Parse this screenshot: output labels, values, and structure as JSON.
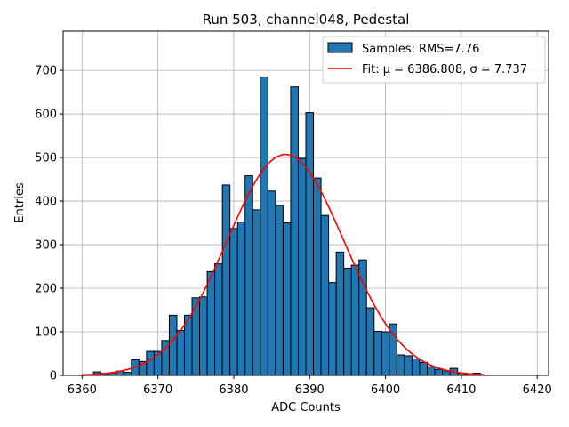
{
  "chart_data": {
    "type": "bar",
    "title": "Run 503, channel048, Pedestal",
    "xlabel": "ADC Counts",
    "ylabel": "Entries",
    "xlim": [
      6357.5,
      6421.5
    ],
    "ylim": [
      0,
      790
    ],
    "xticks": [
      6360,
      6370,
      6380,
      6390,
      6400,
      6410,
      6420
    ],
    "yticks": [
      0,
      100,
      200,
      300,
      400,
      500,
      600,
      700
    ],
    "grid": true,
    "legend_position": "top-right",
    "bin_width": 1,
    "bar_color": "#1f77b4",
    "fit_color": "#ff0000",
    "histogram": {
      "name": "Samples: RMS=7.76",
      "x": [
        6362,
        6363,
        6364,
        6365,
        6366,
        6367,
        6368,
        6369,
        6370,
        6371,
        6372,
        6373,
        6374,
        6375,
        6376,
        6377,
        6378,
        6379,
        6380,
        6381,
        6382,
        6383,
        6384,
        6385,
        6386,
        6387,
        6388,
        6389,
        6390,
        6391,
        6392,
        6393,
        6394,
        6395,
        6396,
        6397,
        6398,
        6399,
        6400,
        6401,
        6402,
        6403,
        6404,
        6405,
        6406,
        6407,
        6408,
        6409,
        6410,
        6411,
        6412
      ],
      "values": [
        8,
        5,
        6,
        10,
        7,
        36,
        32,
        55,
        55,
        80,
        138,
        103,
        138,
        178,
        180,
        238,
        256,
        437,
        337,
        352,
        458,
        380,
        685,
        423,
        390,
        350,
        662,
        498,
        603,
        453,
        367,
        213,
        283,
        246,
        253,
        265,
        155,
        101,
        100,
        118,
        47,
        45,
        38,
        30,
        20,
        14,
        10,
        16,
        5,
        3,
        5
      ]
    },
    "fit": {
      "name": "Fit: μ = 6386.808, σ = 7.737",
      "type": "gaussian",
      "mu": 6386.808,
      "sigma": 7.737,
      "amplitude": 507,
      "x_range": [
        6360,
        6413
      ]
    }
  }
}
